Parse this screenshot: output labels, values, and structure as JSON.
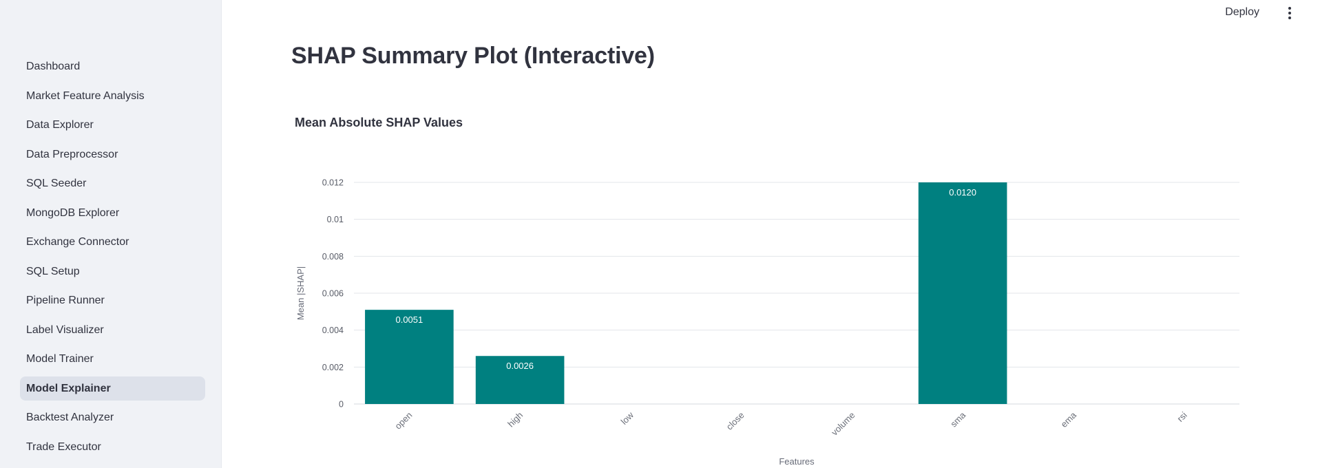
{
  "topbar": {
    "deploy_label": "Deploy",
    "menu_icon": "kebab-menu-icon"
  },
  "sidebar": {
    "items": [
      {
        "label": "Dashboard",
        "active": false
      },
      {
        "label": "Market Feature Analysis",
        "active": false
      },
      {
        "label": "Data Explorer",
        "active": false
      },
      {
        "label": "Data Preprocessor",
        "active": false
      },
      {
        "label": "SQL Seeder",
        "active": false
      },
      {
        "label": "MongoDB Explorer",
        "active": false
      },
      {
        "label": "Exchange Connector",
        "active": false
      },
      {
        "label": "SQL Setup",
        "active": false
      },
      {
        "label": "Pipeline Runner",
        "active": false
      },
      {
        "label": "Label Visualizer",
        "active": false
      },
      {
        "label": "Model Trainer",
        "active": false
      },
      {
        "label": "Model Explainer",
        "active": true
      },
      {
        "label": "Backtest Analyzer",
        "active": false
      },
      {
        "label": "Trade Executor",
        "active": false
      }
    ]
  },
  "main": {
    "page_title": "SHAP Summary Plot (Interactive)",
    "chart_title": "Mean Absolute SHAP Values"
  },
  "colors": {
    "bar": "#008080",
    "sidebar_bg": "#f0f2f6",
    "active_item_bg": "#dde1ea",
    "grid": "#e3e5ea"
  },
  "chart_data": {
    "type": "bar",
    "title": "Mean Absolute SHAP Values",
    "xlabel": "Features",
    "ylabel": "Mean |SHAP|",
    "categories": [
      "open",
      "high",
      "low",
      "close",
      "volume",
      "sma",
      "ema",
      "rsi"
    ],
    "values": [
      0.0051,
      0.0026,
      0,
      0,
      0,
      0.012,
      0,
      0
    ],
    "data_labels": [
      "0.0051",
      "0.0026",
      "",
      "",
      "",
      "0.0120",
      "",
      ""
    ],
    "ylim": [
      0,
      0.012
    ],
    "yticks": [
      0,
      0.002,
      0.004,
      0.006,
      0.008,
      0.01,
      0.012
    ],
    "ytick_labels": [
      "0",
      "0.002",
      "0.004",
      "0.006",
      "0.008",
      "0.01",
      "0.012"
    ],
    "grid": true,
    "legend": "none"
  }
}
